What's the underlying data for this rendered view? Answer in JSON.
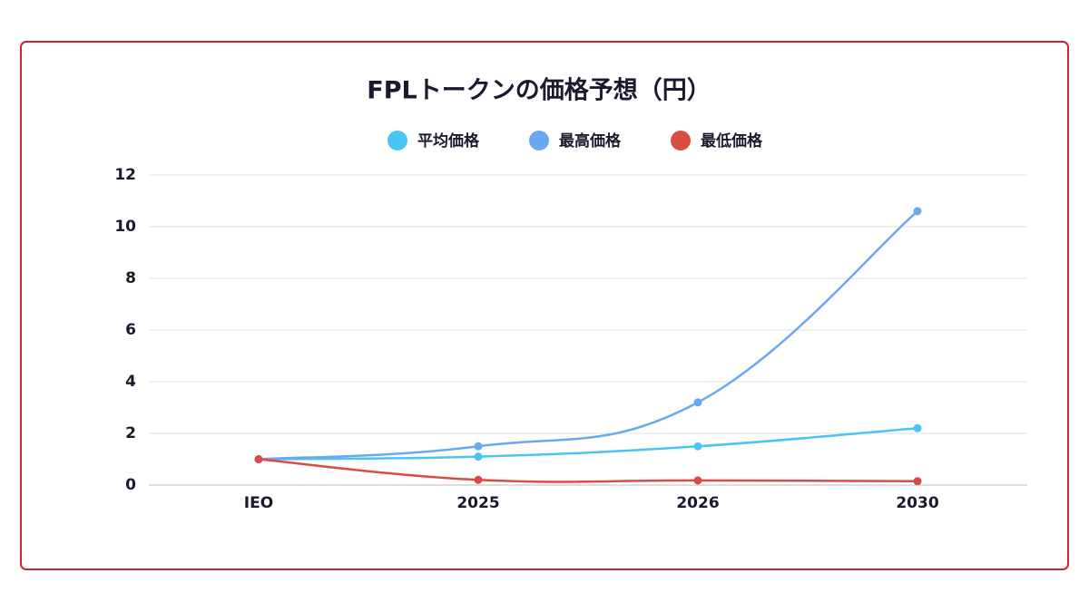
{
  "chart_data": {
    "type": "line",
    "title": "FPLトークンの価格予想（円）",
    "categories": [
      "IEO",
      "2025",
      "2026",
      "2030"
    ],
    "series": [
      {
        "name": "平均価格",
        "color": "#4cc3f5",
        "values": [
          1,
          1.1,
          1.5,
          2.2
        ]
      },
      {
        "name": "最高価格",
        "color": "#6aa8f0",
        "values": [
          1,
          1.5,
          3.2,
          10.6
        ]
      },
      {
        "name": "最低価格",
        "color": "#d94c42",
        "values": [
          1,
          0.2,
          0.18,
          0.15
        ]
      }
    ],
    "ylim": [
      0,
      12
    ],
    "yticks": [
      0,
      2,
      4,
      6,
      8,
      10,
      12
    ],
    "grid": true
  }
}
